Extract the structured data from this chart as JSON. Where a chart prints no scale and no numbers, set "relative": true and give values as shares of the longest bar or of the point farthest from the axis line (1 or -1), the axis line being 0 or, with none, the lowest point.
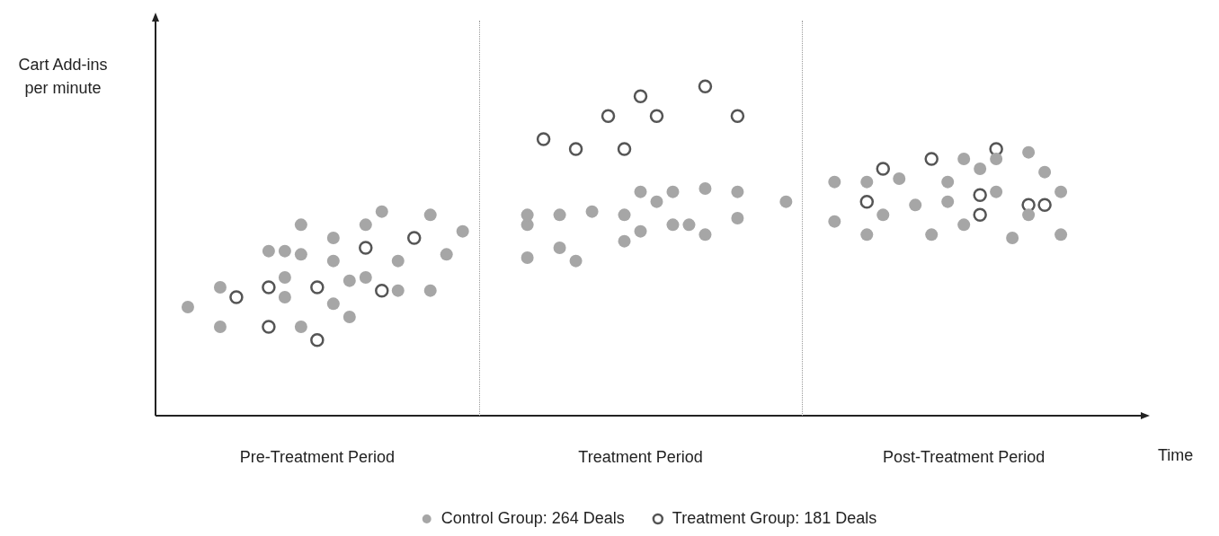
{
  "chart_data": {
    "type": "scatter",
    "relative": true,
    "xlabel": "Time",
    "ylabel": "Cart Add-ins per minute",
    "categories": [
      null,
      null,
      null,
      null,
      null,
      null,
      null,
      null,
      null,
      null,
      "Pre-Treatment Period",
      null,
      null,
      null,
      null,
      null,
      null,
      null,
      null,
      null,
      null,
      null,
      null,
      null,
      null,
      null,
      null,
      null,
      null,
      null,
      "Treatment Period",
      null,
      null,
      null,
      null,
      null,
      null,
      null,
      null,
      null,
      null,
      null,
      null,
      null,
      null,
      null,
      null,
      null,
      null,
      null,
      "Post-Treatment Period",
      null,
      null,
      null,
      null,
      null,
      null,
      null,
      null,
      null,
      null,
      null
    ],
    "legend": "bottom",
    "marker": "circle",
    "series": [
      {
        "name": "Control Group: 264 Deals",
        "color": "#a6a6a6",
        "values": [
          null,
          null,
          0.33,
          null,
          0.39,
          null,
          null,
          0.5,
          0.42,
          0.58,
          null,
          0.54,
          0.41,
          0.58,
          0.62,
          0.38,
          null,
          0.61,
          0.49,
          0.56,
          null,
          null,
          null,
          0.61,
          null,
          0.61,
          0.47,
          0.62,
          null,
          0.53,
          0.68,
          0.65,
          0.58,
          0.58,
          0.55,
          null,
          0.6,
          null,
          null,
          0.65,
          null,
          null,
          0.71,
          null,
          0.55,
          0.61,
          0.72,
          0.64,
          0.55,
          0.71,
          0.78,
          0.75,
          0.78,
          0.54,
          0.61,
          0.74,
          0.68,
          null,
          null,
          null,
          null,
          null
        ]
      },
      {
        "color": "#a6a6a6",
        "values": [
          null,
          null,
          null,
          null,
          0.27,
          null,
          null,
          null,
          0.36,
          0.27,
          null,
          0.34,
          0.3,
          0.42,
          null,
          0.47,
          null,
          0.38,
          null,
          null,
          null,
          null,
          null,
          0.48,
          null,
          0.51,
          null,
          null,
          null,
          0.61,
          0.56,
          null,
          0.68,
          null,
          0.69,
          null,
          0.68,
          null,
          null,
          null,
          null,
          null,
          0.59,
          null,
          0.71,
          null,
          null,
          null,
          null,
          0.65,
          0.58,
          null,
          0.68,
          null,
          0.8,
          null,
          0.55,
          null,
          null,
          null,
          null,
          null
        ]
      },
      {
        "color": "#a6a6a6",
        "values": [
          null,
          null,
          null,
          null,
          null,
          null,
          null,
          null,
          0.5,
          0.49,
          null,
          0.47,
          null,
          null,
          null,
          null,
          null,
          null,
          null,
          null,
          null,
          null,
          null,
          0.58,
          null,
          null,
          null,
          null,
          null,
          null,
          null,
          null,
          null,
          null,
          null,
          null,
          null,
          null,
          null,
          null,
          null,
          null,
          null,
          null,
          null,
          null,
          null,
          null,
          null,
          null,
          null,
          null,
          null,
          null,
          null,
          null,
          null,
          null,
          null,
          null,
          null,
          null
        ]
      },
      {
        "name": "Treatment Group: 181 Deals",
        "color": "#555555",
        "values": [
          null,
          null,
          null,
          null,
          null,
          0.36,
          null,
          0.39,
          null,
          null,
          0.39,
          null,
          null,
          0.51,
          0.38,
          null,
          0.54,
          null,
          null,
          null,
          null,
          null,
          null,
          null,
          0.84,
          null,
          0.81,
          null,
          0.91,
          0.81,
          0.97,
          0.91,
          null,
          null,
          1,
          null,
          0.91,
          null,
          null,
          null,
          null,
          null,
          null,
          null,
          0.65,
          0.75,
          null,
          null,
          0.78,
          null,
          null,
          0.67,
          0.81,
          null,
          0.64,
          0.64,
          null,
          null,
          null,
          null,
          null,
          null
        ]
      },
      {
        "color": "#555555",
        "values": [
          null,
          null,
          null,
          null,
          null,
          null,
          null,
          0.27,
          null,
          null,
          0.23,
          null,
          null,
          null,
          null,
          null,
          null,
          null,
          null,
          null,
          null,
          null,
          null,
          null,
          null,
          null,
          null,
          null,
          null,
          null,
          null,
          null,
          null,
          null,
          null,
          null,
          null,
          null,
          null,
          null,
          null,
          null,
          null,
          null,
          null,
          null,
          null,
          null,
          null,
          null,
          null,
          0.61,
          null,
          null,
          null,
          null,
          null,
          null,
          null,
          null,
          null,
          null
        ]
      }
    ]
  }
}
